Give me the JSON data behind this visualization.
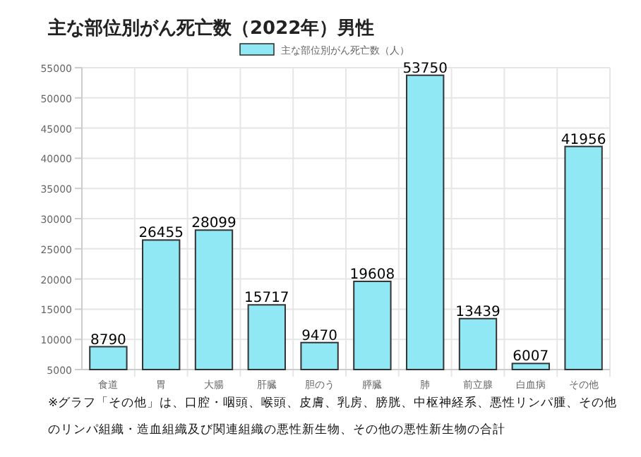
{
  "chart_data": {
    "type": "bar",
    "title": "主な部位別がん死亡数（2022年）男性",
    "categories": [
      "食道",
      "胃",
      "大腸",
      "肝臓",
      "胆のう",
      "膵臓",
      "肺",
      "前立腺",
      "白血病",
      "その他"
    ],
    "series": [
      {
        "name": "主な部位別がん死亡数（人）",
        "color": "#90e8f4",
        "values": [
          8790,
          26455,
          28099,
          15717,
          9470,
          19608,
          53750,
          13439,
          6007,
          41956
        ]
      }
    ],
    "ylim": [
      5000,
      55000
    ],
    "yticks": [
      5000,
      10000,
      15000,
      20000,
      25000,
      30000,
      35000,
      40000,
      45000,
      50000,
      55000
    ],
    "grid": true,
    "legend": "top",
    "data_labels": true,
    "annotations": [
      "※グラフ「その他」は、口腔・咽頭、喉頭、皮膚、乳房、膀胱、中枢神経系、悪性リンパ腫、その他のリンパ組織・造血組織及び関連組織の悪性新生物、その他の悪性新生物の合計"
    ]
  }
}
